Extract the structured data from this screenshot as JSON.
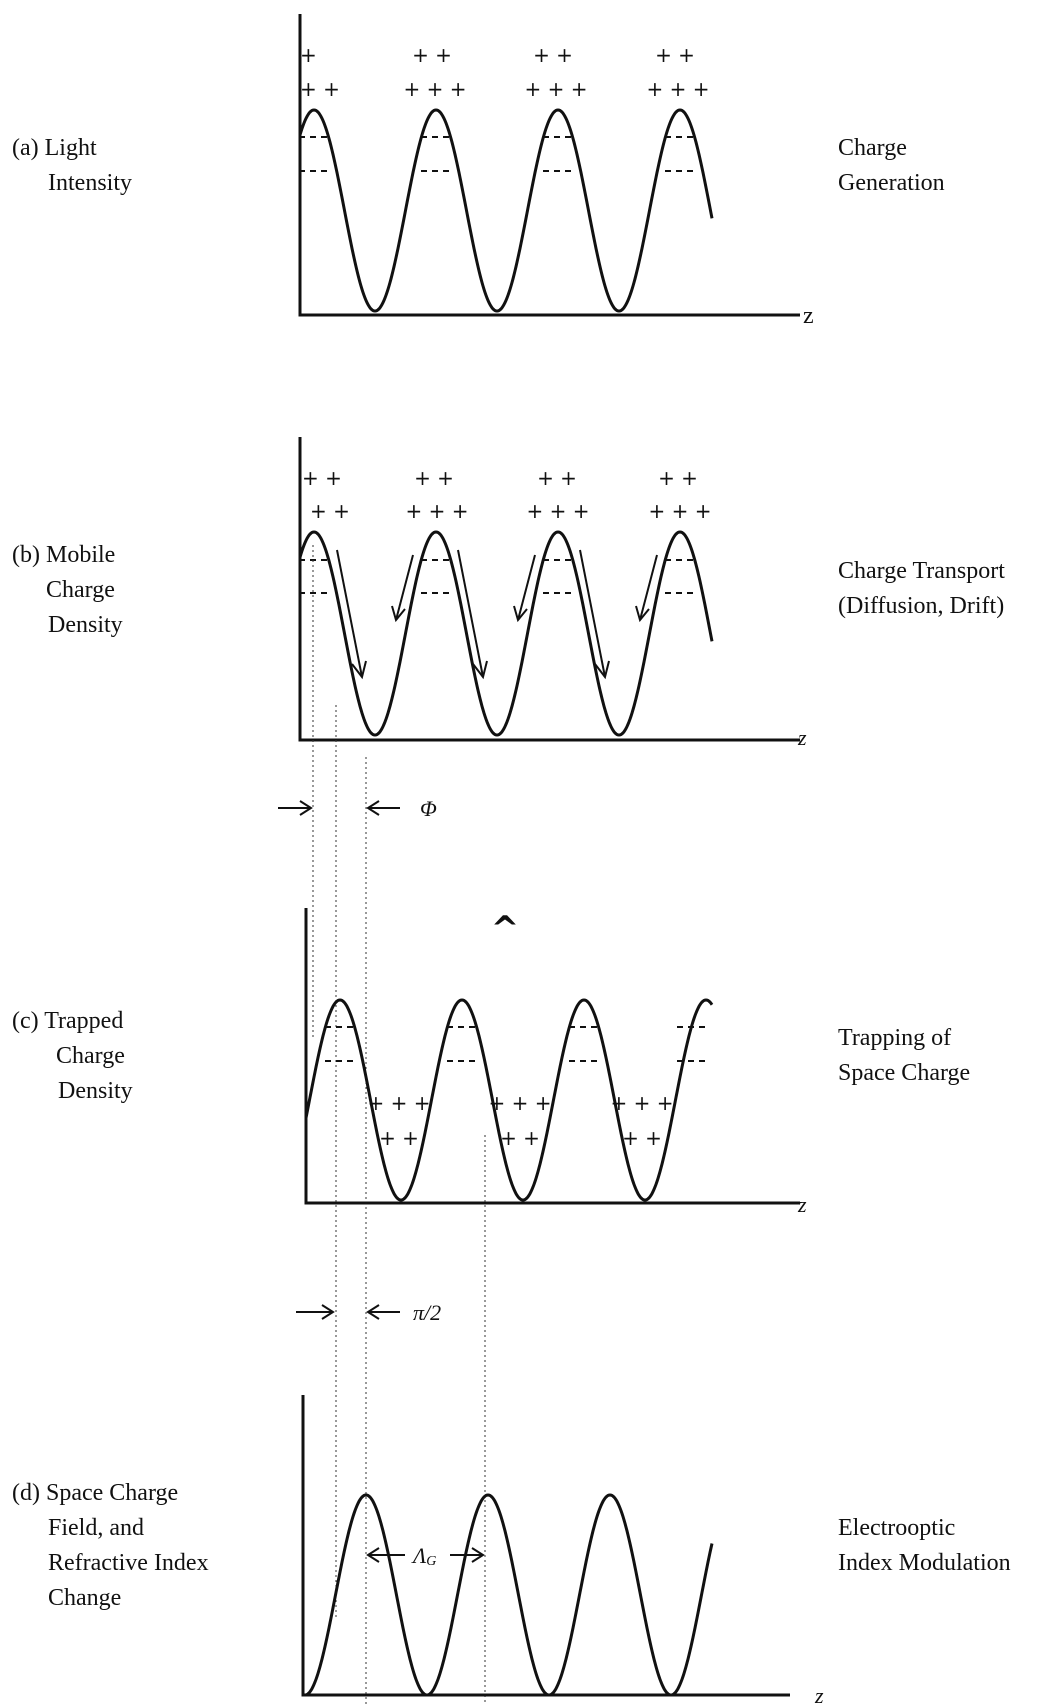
{
  "panels": [
    {
      "id": "a",
      "left_label": [
        "(a) Light",
        "Intensity"
      ],
      "right_label": [
        "Charge",
        "Generation"
      ],
      "axis_label": "z",
      "plus_rows": [
        [
          "+",
          "+ +",
          "+ +",
          "+ +"
        ],
        [
          "+ +",
          "+ + +",
          "+ + +",
          "+ + +"
        ]
      ]
    },
    {
      "id": "b",
      "left_label": [
        "(b) Mobile",
        "Charge",
        "Density"
      ],
      "right_label": [
        "Charge Transport",
        "(Diffusion, Drift)"
      ],
      "axis_label": "z",
      "plus_rows": [
        [
          "+ +",
          "+ +",
          "+ +",
          "+ +"
        ],
        [
          "+ +",
          "+ + +",
          "+ + +",
          "+ + +"
        ]
      ]
    },
    {
      "id": "c",
      "left_label": [
        "(c) Trapped",
        "Charge",
        "Density"
      ],
      "right_label": [
        "Trapping of",
        "Space Charge"
      ],
      "axis_label": "z",
      "plus_rows": [
        [
          "+ + +",
          "+ + +",
          "+ + +"
        ],
        [
          "+  +",
          "+  +",
          "+  +"
        ]
      ]
    },
    {
      "id": "d",
      "left_label": [
        "(d) Space Charge",
        "Field, and",
        "Refractive Index",
        "Change"
      ],
      "right_label": [
        "Electrooptic",
        "Index Modulation"
      ],
      "axis_label": "z"
    }
  ],
  "annotations": {
    "phi": "Φ",
    "half_pi": "π/2",
    "lambda_g": "Λ",
    "lambda_g_sub": "G",
    "caret": "^"
  }
}
